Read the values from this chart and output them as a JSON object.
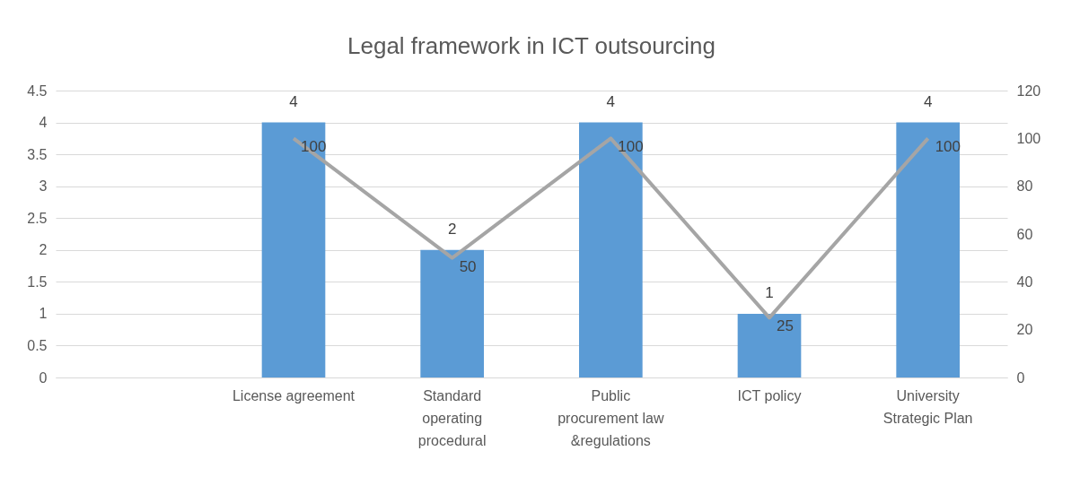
{
  "chart_data": {
    "type": "bar",
    "title": "Legal framework in ICT outsourcing",
    "categories": [
      null,
      "License agreement",
      "Standard operating procedural",
      "Public procurement law &regulations",
      "ICT policy",
      "University Strategic Plan"
    ],
    "series": [
      {
        "color": "#5b9bd5",
        "values": [
          null,
          4,
          2,
          4,
          1,
          4
        ]
      },
      {
        "type": "line",
        "axis": "y2",
        "color": "#a5a5a5",
        "values": [
          null,
          100,
          50,
          100,
          25,
          100
        ]
      }
    ],
    "ylim": [
      0,
      4.5
    ],
    "yticks": [
      0,
      0.5,
      1,
      1.5,
      2,
      2.5,
      3,
      3.5,
      4,
      4.5
    ],
    "y2lim": [
      0,
      120
    ],
    "y2ticks": [
      0,
      20,
      40,
      60,
      80,
      100,
      120
    ],
    "grid": "y",
    "data_labels": true
  }
}
